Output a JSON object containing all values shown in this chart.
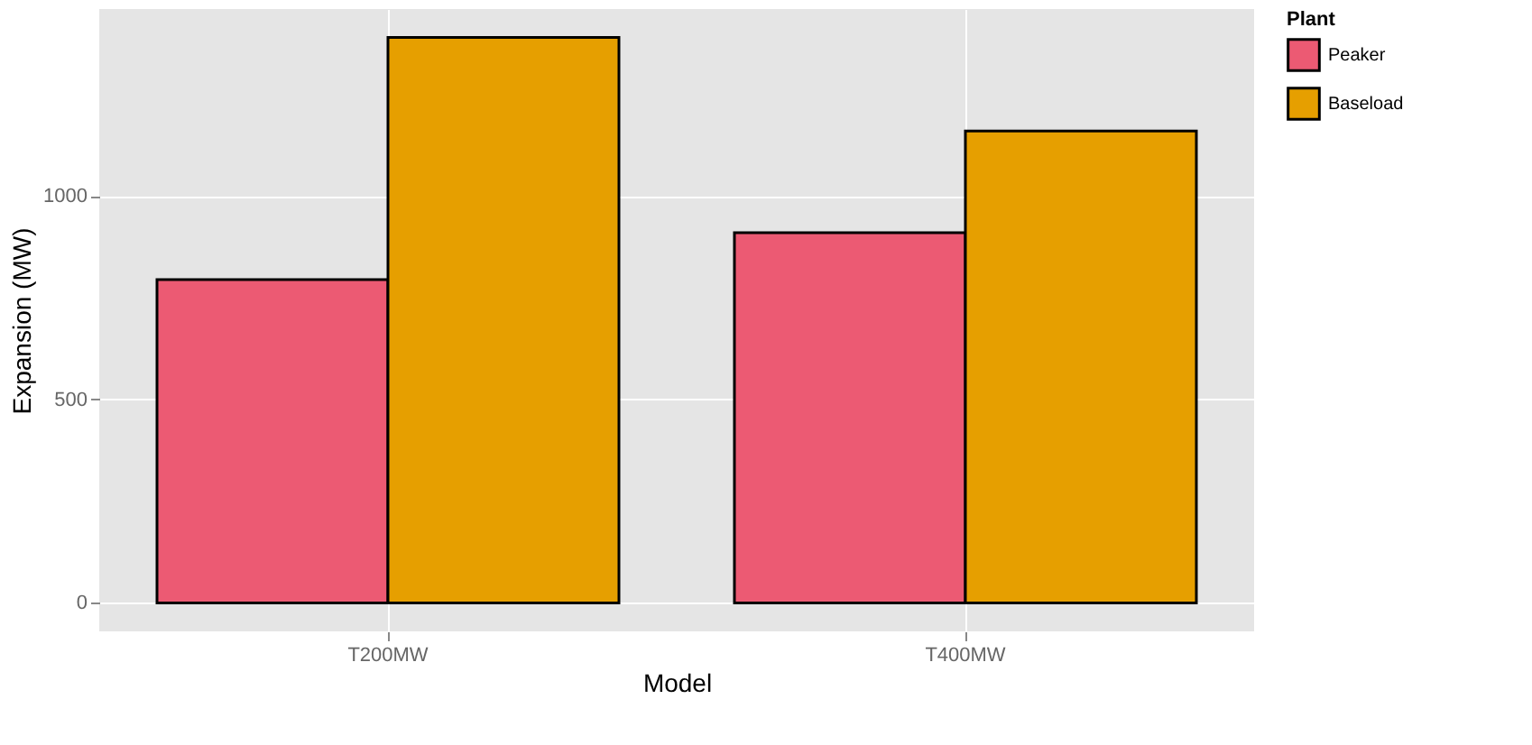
{
  "chart_data": {
    "type": "bar",
    "xlabel": "Model",
    "ylabel": "Expansion (MW)",
    "legend_title": "Plant",
    "categories": [
      "T200MW",
      "T400MW"
    ],
    "series": [
      {
        "name": "Peaker",
        "color": "#ec5a73",
        "values": [
          795,
          910
        ]
      },
      {
        "name": "Baseload",
        "color": "#e69f00",
        "values": [
          1390,
          1160
        ]
      }
    ],
    "ylim": [
      -70,
      1460
    ],
    "yticks": [
      0,
      500,
      1000
    ],
    "grid": true,
    "legend": "right"
  }
}
